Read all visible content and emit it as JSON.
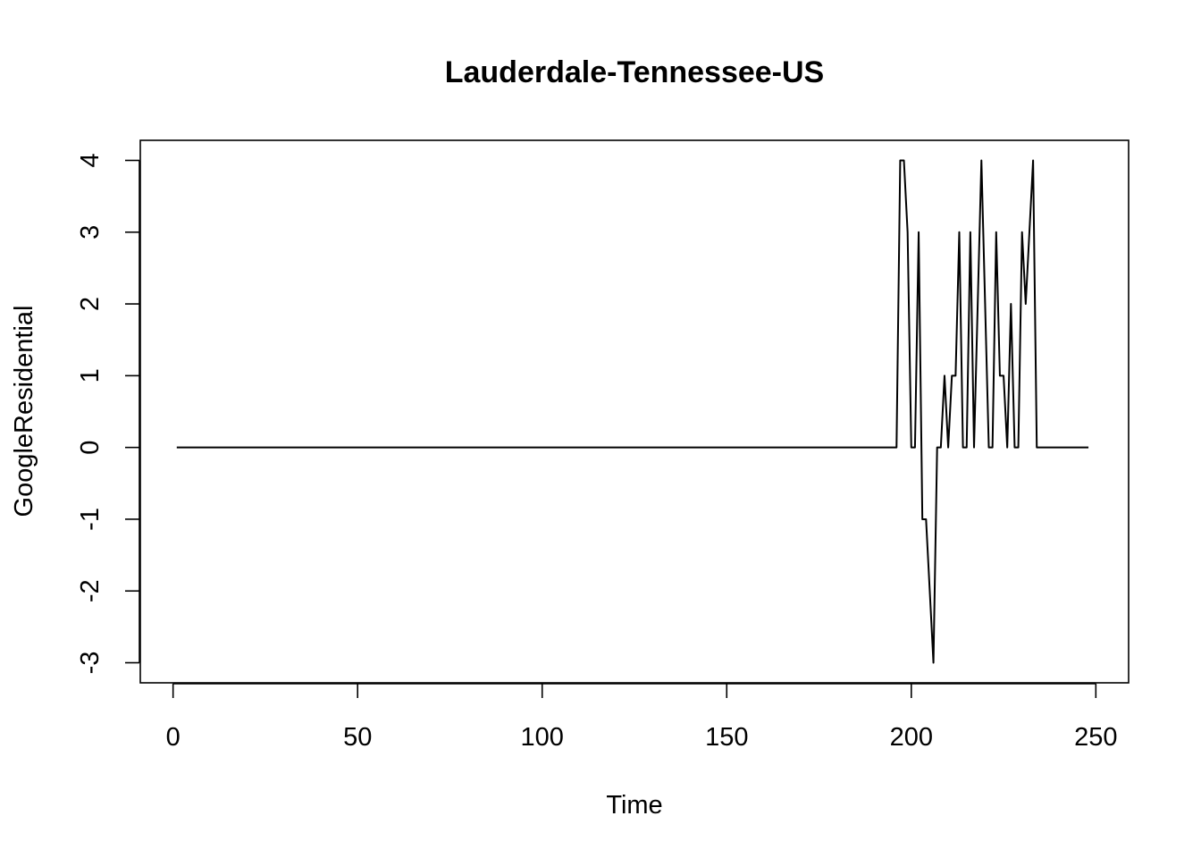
{
  "chart_data": {
    "type": "line",
    "title": "Lauderdale-Tennessee-US",
    "xlabel": "Time",
    "ylabel": "GoogleResidential",
    "xlim": [
      -8.88,
      258.88
    ],
    "ylim": [
      -3.28,
      4.28
    ],
    "xticks": [
      0,
      50,
      100,
      150,
      200,
      250
    ],
    "yticks": [
      -3,
      -2,
      -1,
      0,
      1,
      2,
      3,
      4
    ],
    "grid": false,
    "line_color": "#000000",
    "series": [
      {
        "name": "GoogleResidential",
        "x": [
          1,
          196,
          197,
          198,
          199,
          200,
          201,
          202,
          203,
          204,
          205,
          206,
          207,
          208,
          209,
          210,
          211,
          212,
          213,
          214,
          215,
          216,
          217,
          218,
          219,
          220,
          221,
          222,
          223,
          224,
          225,
          226,
          227,
          228,
          229,
          230,
          231,
          232,
          233,
          234,
          248
        ],
        "values": [
          0,
          0,
          4,
          4,
          3,
          0,
          0,
          3,
          -1,
          -1,
          -2,
          -3,
          0,
          0,
          1,
          0,
          1,
          1,
          3,
          0,
          0,
          3,
          0,
          2,
          4,
          2,
          0,
          0,
          3,
          1,
          1,
          0,
          2,
          0,
          0,
          3,
          2,
          3,
          4,
          0,
          0
        ]
      }
    ]
  }
}
